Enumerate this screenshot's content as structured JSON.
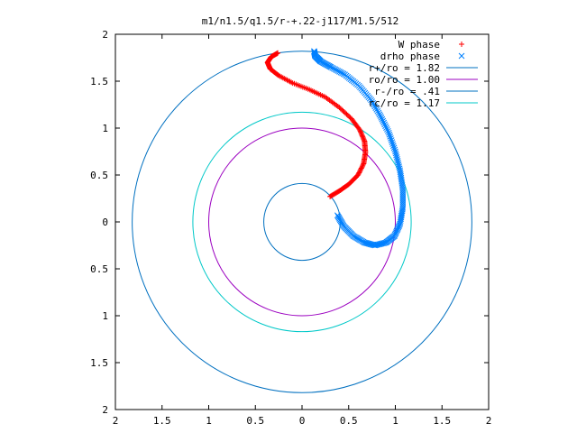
{
  "chart_data": {
    "type": "scatter",
    "title": "m1/n1.5/q1.5/r-+.22-j117/M1.5/512",
    "xlabel": "",
    "ylabel": "",
    "xlim": [
      -2,
      2
    ],
    "ylim": [
      -2,
      2
    ],
    "grid": false,
    "legend_position": "top-right",
    "x_tick_labels": [
      "2",
      "1.5",
      "1",
      "0.5",
      "0",
      "0.5",
      "1",
      "1.5",
      "2"
    ],
    "y_tick_labels": [
      "2",
      "1.5",
      "1",
      "0.5",
      "0",
      "0.5",
      "1",
      "1.5",
      "2"
    ],
    "circles": [
      {
        "name": "r+/ro = 1.82",
        "radius": 1.82,
        "color": "#0070c0"
      },
      {
        "name": "ro/ro = 1.00",
        "radius": 1.0,
        "color": "#9b00c0"
      },
      {
        "name": "r-/ro = .41",
        "radius": 0.41,
        "color": "#0070c0"
      },
      {
        "name": "rc/ro = 1.17",
        "radius": 1.17,
        "color": "#00c8c8"
      }
    ],
    "series": [
      {
        "name": "W phase",
        "marker": "+",
        "color": "#ff0000",
        "points": [
          [
            0.3,
            0.27
          ],
          [
            0.4,
            0.33
          ],
          [
            0.5,
            0.4
          ],
          [
            0.6,
            0.5
          ],
          [
            0.66,
            0.62
          ],
          [
            0.68,
            0.74
          ],
          [
            0.67,
            0.86
          ],
          [
            0.62,
            0.98
          ],
          [
            0.53,
            1.1
          ],
          [
            0.4,
            1.22
          ],
          [
            0.25,
            1.33
          ],
          [
            0.08,
            1.41
          ],
          [
            -0.1,
            1.48
          ],
          [
            -0.25,
            1.56
          ],
          [
            -0.34,
            1.63
          ],
          [
            -0.37,
            1.7
          ],
          [
            -0.33,
            1.76
          ],
          [
            -0.26,
            1.8
          ]
        ]
      },
      {
        "name": "drho phase",
        "marker": "x",
        "color": "#0080ff",
        "points": [
          [
            0.38,
            0.07
          ],
          [
            0.45,
            -0.05
          ],
          [
            0.55,
            -0.15
          ],
          [
            0.67,
            -0.22
          ],
          [
            0.78,
            -0.25
          ],
          [
            0.9,
            -0.22
          ],
          [
            0.99,
            -0.15
          ],
          [
            1.05,
            -0.02
          ],
          [
            1.08,
            0.15
          ],
          [
            1.08,
            0.35
          ],
          [
            1.05,
            0.55
          ],
          [
            1.0,
            0.75
          ],
          [
            0.93,
            0.95
          ],
          [
            0.84,
            1.13
          ],
          [
            0.74,
            1.3
          ],
          [
            0.61,
            1.45
          ],
          [
            0.46,
            1.57
          ],
          [
            0.31,
            1.65
          ],
          [
            0.2,
            1.71
          ],
          [
            0.14,
            1.77
          ],
          [
            0.13,
            1.82
          ]
        ]
      }
    ]
  }
}
